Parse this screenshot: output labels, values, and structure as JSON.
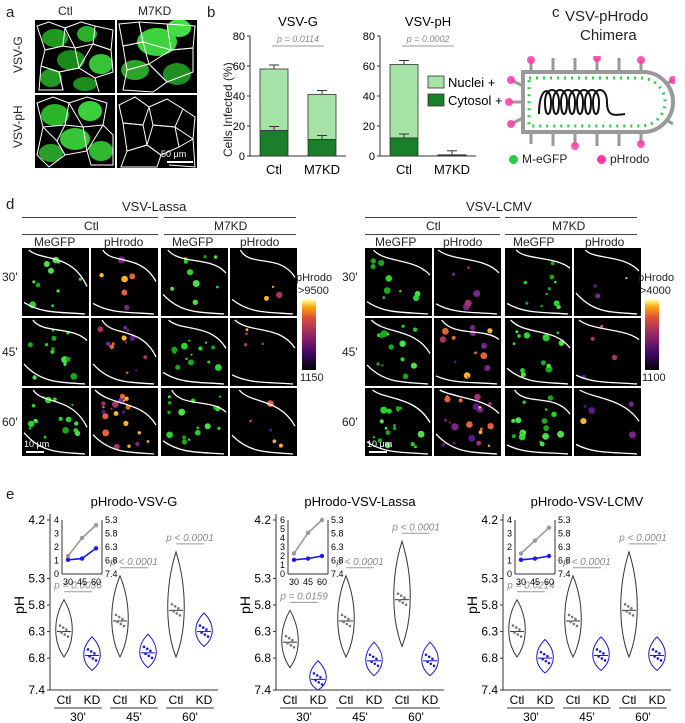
{
  "panel_a": {
    "letter": "a",
    "col_ctl": "Ctl",
    "col_kd": "M7KD",
    "row1": "VSV-G",
    "row2": "VSV-pH",
    "scale": "50 μm"
  },
  "panel_b": {
    "letter": "b",
    "ylabel": "Cells Infected (%)",
    "legend_nuclei": "Nuclei +",
    "legend_cytosol": "Cytosol +",
    "colors": {
      "nuclei": "#a6e3a6",
      "cytosol": "#1a7f2b"
    }
  },
  "panel_c": {
    "letter": "c",
    "title_line1": "VSV-pHrodo",
    "title_line2": "Chimera",
    "legend_meGFP": "M-eGFP",
    "legend_pHrodo": "pHrodo"
  },
  "panel_d": {
    "letter": "d",
    "group1": "VSV-Lassa",
    "group2": "VSV-LCMV",
    "ctl": "Ctl",
    "kd": "M7KD",
    "megfp": "MeGFP",
    "phrodo": "pHrodo",
    "t30": "30'",
    "t45": "45'",
    "t60": "60'",
    "scale": "10 μm",
    "cbar1_title1": "pHrodo",
    "cbar1_title2": ">9500",
    "cbar1_min": "1150",
    "cbar2_title1": "pHrodo",
    "cbar2_title2": ">4000",
    "cbar2_min": "1100"
  },
  "panel_e": {
    "letter": "e",
    "ylabel": "pH",
    "ctl": "Ctl",
    "kd": "KD",
    "t30": "30'",
    "t45": "45'",
    "t60": "60'"
  },
  "chart_data": [
    {
      "type": "bar",
      "title": "VSV-G",
      "categories": [
        "Ctl",
        "M7KD"
      ],
      "series": [
        {
          "name": "Cytosol +",
          "values": [
            17,
            11
          ]
        },
        {
          "name": "Nuclei +",
          "values": [
            41,
            30
          ]
        }
      ],
      "totals": [
        58,
        41
      ],
      "ylim": [
        0,
        80
      ],
      "yticks": [
        "0",
        "20",
        "40",
        "60",
        "80"
      ],
      "annotation": "p = 0.0114"
    },
    {
      "type": "bar",
      "title": "VSV-pH",
      "categories": [
        "Ctl",
        "M7KD"
      ],
      "series": [
        {
          "name": "Cytosol +",
          "values": [
            12,
            0.5
          ]
        },
        {
          "name": "Nuclei +",
          "values": [
            49,
            0.3
          ]
        }
      ],
      "totals": [
        61,
        0.8
      ],
      "ylim": [
        0,
        80
      ],
      "yticks": [
        "0",
        "20",
        "40",
        "60",
        "80"
      ],
      "annotation": "p = 0.0002"
    },
    {
      "type": "violin",
      "title": "pHrodo-VSV-G",
      "categories": [
        "Ctl 30'",
        "KD 30'",
        "Ctl 45'",
        "KD 45'",
        "Ctl 60'",
        "KD 60'"
      ],
      "medians_pH": [
        6.3,
        6.75,
        6.1,
        6.7,
        5.9,
        6.3
      ],
      "yticks": [
        "4.2",
        "5.3",
        "5.8",
        "6.3",
        "6.8",
        "7.4"
      ],
      "annotations": [
        "p = 0.0036",
        "p < 0.0001",
        "p < 0.0001"
      ],
      "inset": {
        "x": [
          30,
          45,
          60
        ],
        "ctl": [
          6.7,
          6.0,
          5.5
        ],
        "kd": [
          6.85,
          6.8,
          6.4
        ],
        "yticks_left": [
          "0",
          "1",
          "2",
          "3",
          "4"
        ],
        "yticks_right": [
          "5.3",
          "5.8",
          "6.3",
          "6.8",
          "7.4"
        ]
      }
    },
    {
      "type": "violin",
      "title": "pHrodo-VSV-Lassa",
      "categories": [
        "Ctl 30'",
        "KD 30'",
        "Ctl 45'",
        "KD 45'",
        "Ctl 60'",
        "KD 60'"
      ],
      "medians_pH": [
        6.5,
        7.2,
        6.1,
        6.85,
        5.7,
        6.85
      ],
      "yticks": [
        "4.2",
        "5.3",
        "5.8",
        "6.3",
        "6.8",
        "7.4"
      ],
      "annotations": [
        "p = 0.0159",
        "p < 0.0001",
        "p < 0.0001"
      ],
      "inset": {
        "x": [
          30,
          45,
          60
        ],
        "ctl": [
          6.6,
          5.8,
          5.3
        ],
        "kd": [
          6.85,
          6.8,
          6.7
        ],
        "yticks_left": [
          "0",
          "1",
          "2",
          "3",
          "4",
          "5",
          "6"
        ],
        "yticks_right": [
          "5.3",
          "5.8",
          "6.3",
          "6.8",
          "7.4"
        ]
      }
    },
    {
      "type": "violin",
      "title": "pHrodo-VSV-LCMV",
      "categories": [
        "Ctl 30'",
        "KD 30'",
        "Ctl 45'",
        "KD 45'",
        "Ctl 60'",
        "KD 60'"
      ],
      "medians_pH": [
        6.3,
        6.8,
        6.1,
        6.75,
        5.9,
        6.75
      ],
      "yticks": [
        "4.2",
        "5.3",
        "5.8",
        "6.3",
        "6.8",
        "7.4"
      ],
      "annotations": [
        "p = 0.0214",
        "p < 0.0001",
        "p < 0.0001"
      ],
      "inset": {
        "x": [
          30,
          45,
          60
        ],
        "ctl": [
          6.6,
          6.1,
          5.6
        ],
        "kd": [
          6.85,
          6.8,
          6.7
        ],
        "yticks_left": [
          "0",
          "1",
          "2",
          "3",
          "4"
        ],
        "yticks_right": [
          "5.3",
          "5.8",
          "6.3",
          "6.8",
          "7.4"
        ]
      }
    }
  ]
}
